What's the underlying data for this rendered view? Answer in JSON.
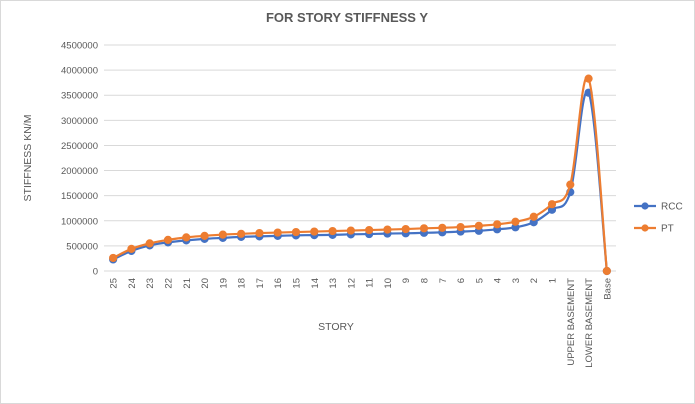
{
  "chart_data": {
    "type": "line",
    "title": "FOR STORY STIFFNESS Y",
    "xlabel": "STORY",
    "ylabel": "STIFFNESS KN/M",
    "ylim": [
      0,
      4500000
    ],
    "yticks": [
      0,
      500000,
      1000000,
      1500000,
      2000000,
      2500000,
      3000000,
      3500000,
      4000000,
      4500000
    ],
    "grid": true,
    "legend_position": "right",
    "categories": [
      "25",
      "24",
      "23",
      "22",
      "21",
      "20",
      "19",
      "18",
      "17",
      "16",
      "15",
      "14",
      "13",
      "12",
      "11",
      "10",
      "9",
      "8",
      "7",
      "6",
      "5",
      "4",
      "3",
      "2",
      "1",
      "UPPER BASEMENT",
      "LOWER BASEMENT",
      "Base"
    ],
    "series": [
      {
        "name": "RCC",
        "color": "#4472c4",
        "values": [
          230000,
          400000,
          510000,
          570000,
          610000,
          640000,
          660000,
          680000,
          690000,
          700000,
          710000,
          715000,
          720000,
          730000,
          735000,
          745000,
          750000,
          760000,
          770000,
          785000,
          800000,
          830000,
          870000,
          970000,
          1220000,
          1570000,
          3550000,
          0
        ]
      },
      {
        "name": "PT",
        "color": "#ed7d31",
        "values": [
          260000,
          440000,
          550000,
          620000,
          670000,
          700000,
          725000,
          740000,
          755000,
          765000,
          775000,
          785000,
          795000,
          805000,
          815000,
          825000,
          835000,
          850000,
          860000,
          875000,
          900000,
          930000,
          980000,
          1080000,
          1330000,
          1720000,
          3830000,
          0
        ]
      }
    ]
  }
}
